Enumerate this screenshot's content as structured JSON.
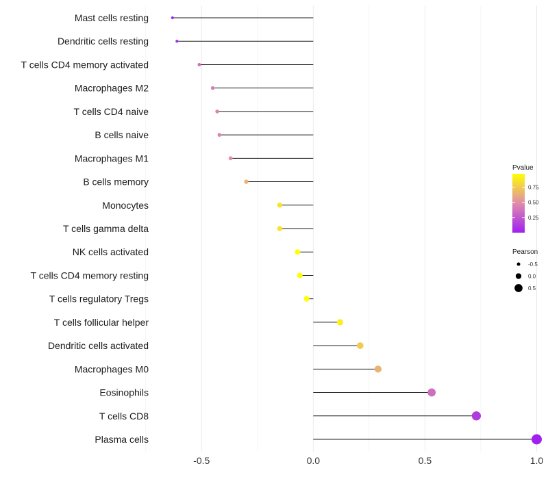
{
  "chart_data": {
    "type": "lollipop",
    "title": "",
    "xlabel": "",
    "ylabel": "",
    "xlim": [
      -0.7,
      1.02
    ],
    "x_ticks": [
      -0.5,
      0.0,
      0.5,
      1.0
    ],
    "x_tick_labels": [
      "-0.5",
      "0.0",
      "0.5",
      "1.0"
    ],
    "grid": true,
    "categories": [
      "Mast cells resting",
      "Dendritic cells resting",
      "T cells CD4 memory activated",
      "Macrophages M2",
      "T cells CD4 naive",
      "B cells naive",
      "Macrophages M1",
      "B cells memory",
      "Monocytes",
      "T cells gamma delta",
      "NK cells activated",
      "T cells CD4 memory resting",
      "T cells regulatory  Tregs ",
      "T cells follicular helper",
      "Dendritic cells activated",
      "Macrophages M0",
      "Eosinophils",
      "T cells CD8",
      "Plasma cells"
    ],
    "pearson": [
      -0.63,
      -0.61,
      -0.51,
      -0.45,
      -0.43,
      -0.42,
      -0.37,
      -0.3,
      -0.15,
      -0.15,
      -0.07,
      -0.06,
      -0.03,
      0.12,
      0.21,
      0.29,
      0.53,
      0.73,
      1.0
    ],
    "pvalue": [
      0.02,
      0.05,
      0.35,
      0.4,
      0.45,
      0.45,
      0.5,
      0.65,
      0.85,
      0.85,
      0.97,
      0.97,
      0.98,
      0.9,
      0.75,
      0.65,
      0.35,
      0.12,
      0.0
    ],
    "legend": {
      "placement": "right",
      "color_title": "Pvalue",
      "color_range": [
        0.0,
        0.97
      ],
      "color_ticks": [
        0.75,
        0.5,
        0.25
      ],
      "color_tick_labels": [
        "0.75",
        "0.50",
        "0.25"
      ],
      "color_low": "#a020f0",
      "color_mid": "#e08cac",
      "color_high": "#ffff00",
      "size_title": "Pearson",
      "size_values": [
        -0.5,
        0.0,
        0.5
      ],
      "size_labels": [
        "-0.5",
        "0.0",
        "0.5"
      ]
    }
  }
}
